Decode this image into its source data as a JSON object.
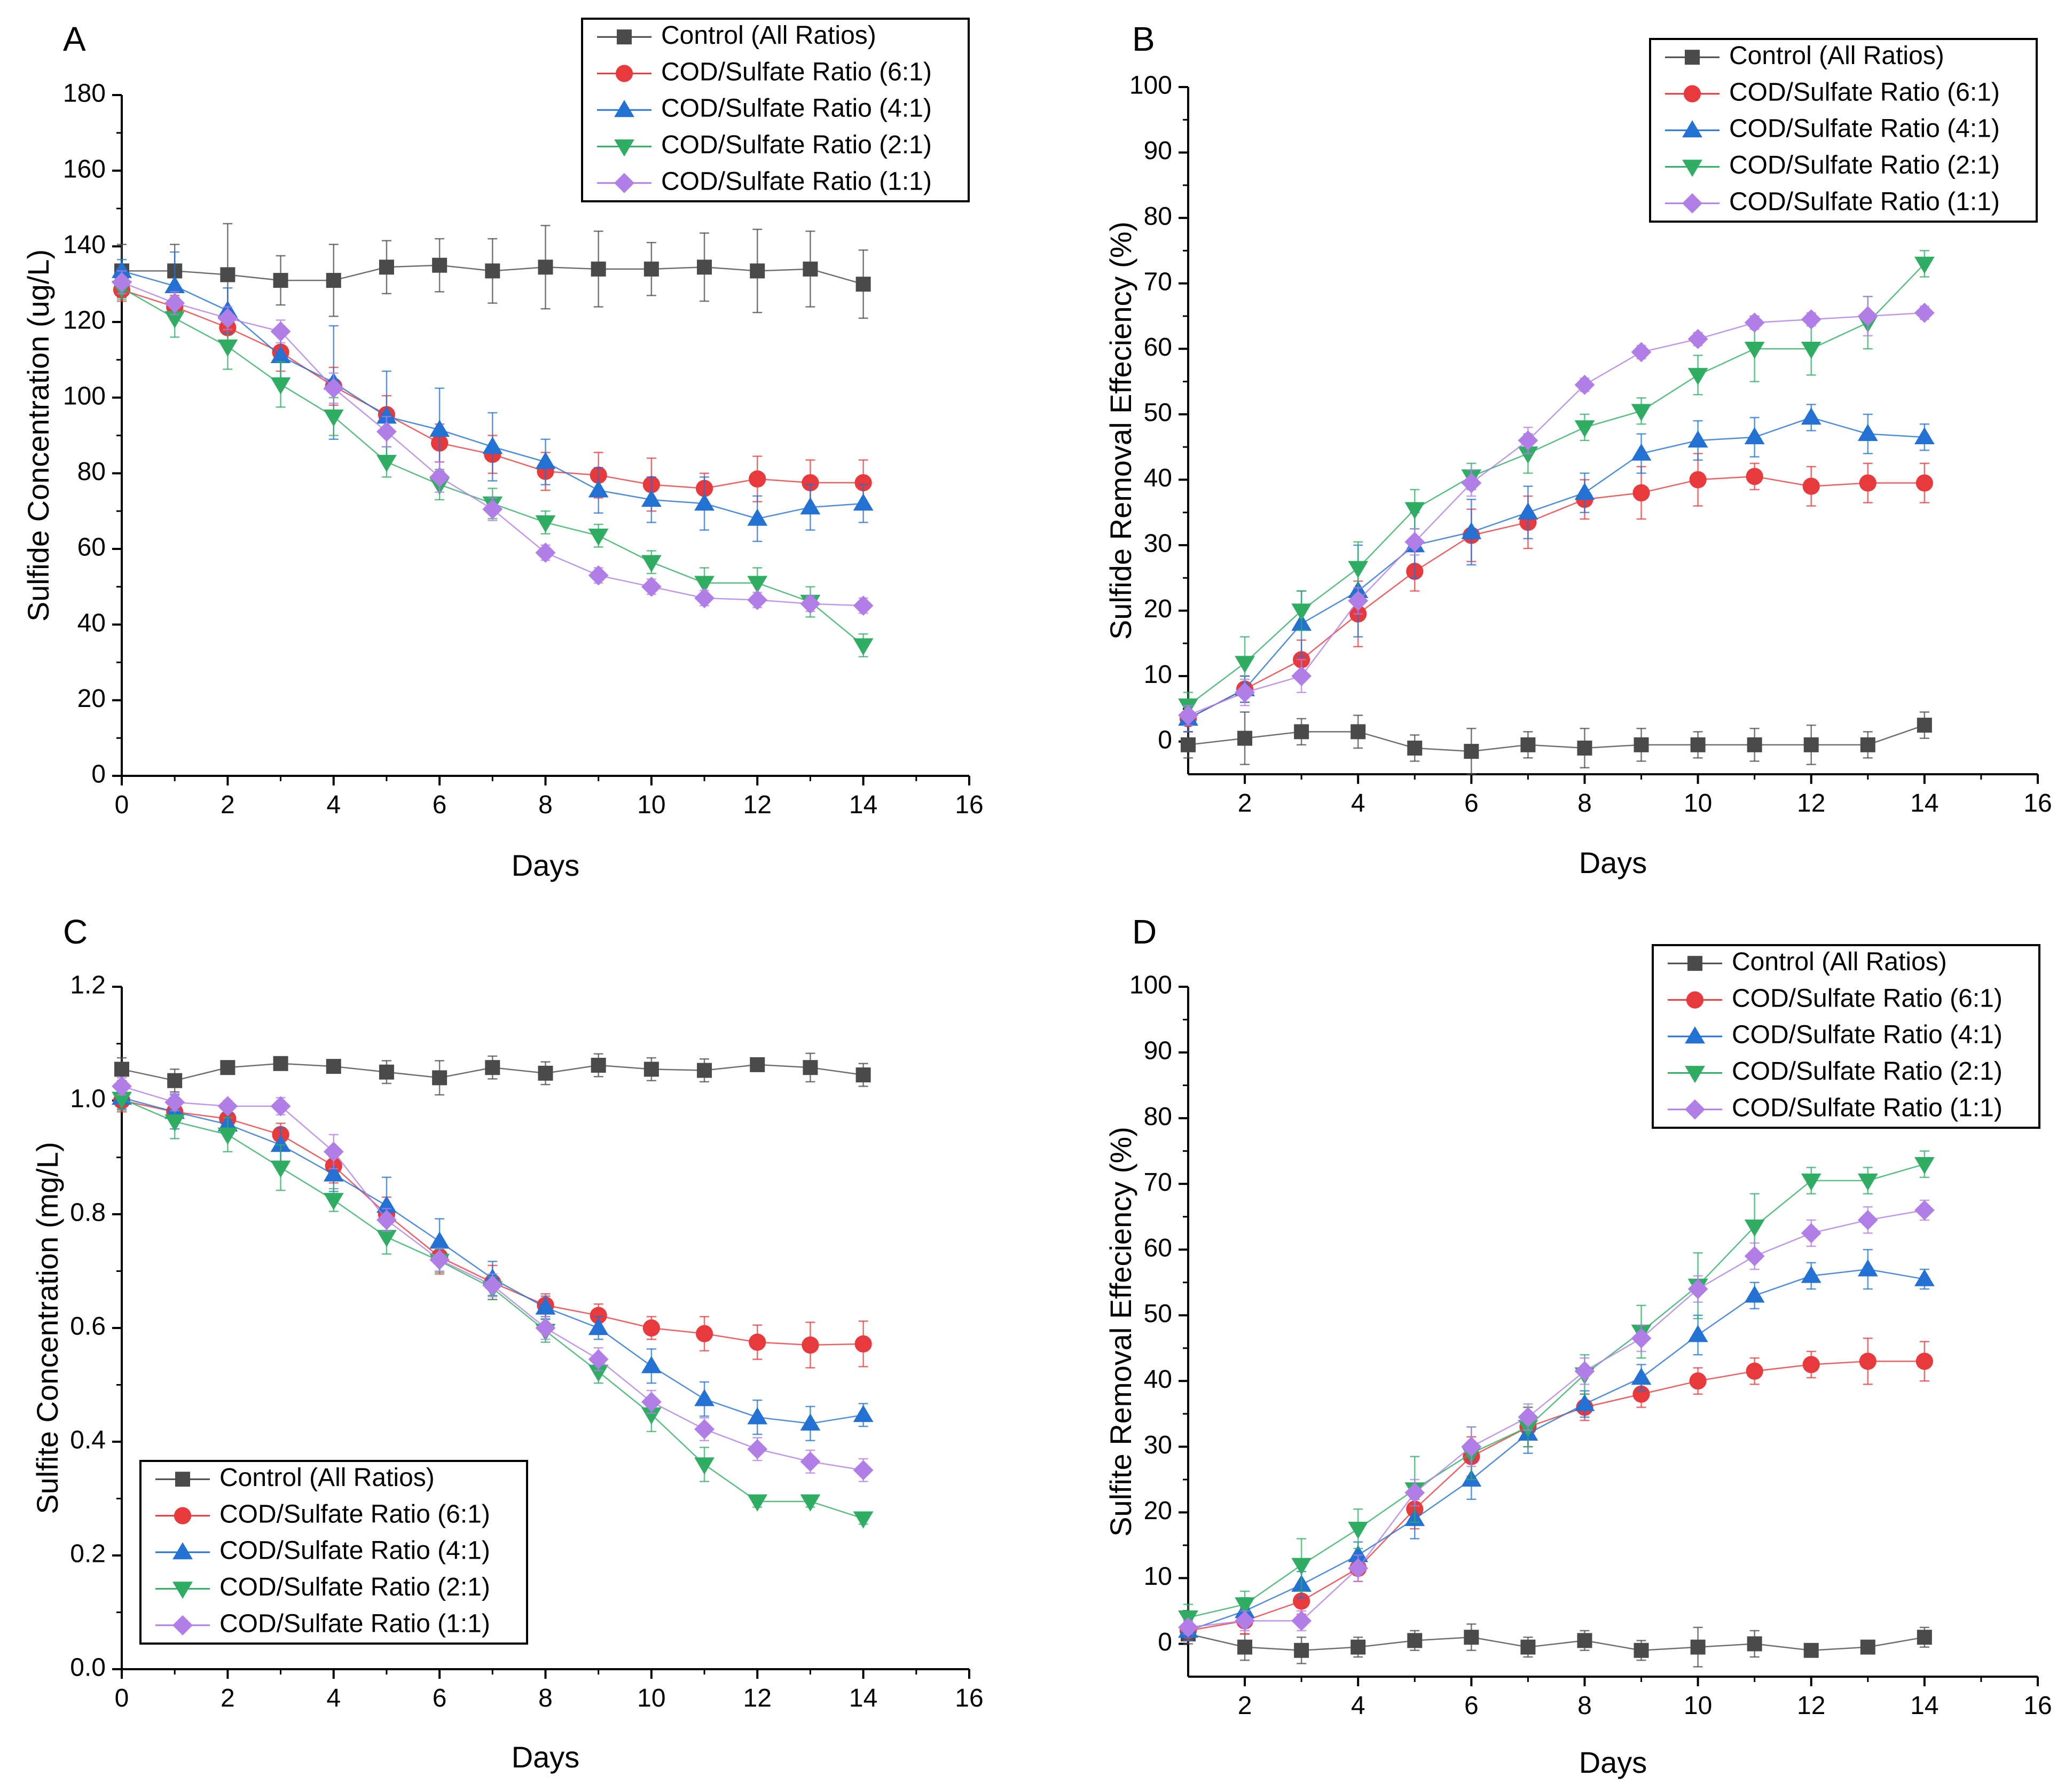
{
  "figure": {
    "colors": {
      "control": "#4a4a4a",
      "ratio_6_1": "#e8393c",
      "ratio_4_1": "#2271d3",
      "ratio_2_1": "#2fae63",
      "ratio_1_1": "#b07ee6",
      "axis": "#000000"
    }
  },
  "chart_data": [
    {
      "panel": "A",
      "type": "line",
      "xlabel": "Days",
      "ylabel": "Sulfide Concentration (ug/L)",
      "xlim": [
        0,
        16
      ],
      "ylim": [
        0,
        180
      ],
      "xticks": [
        0,
        2,
        4,
        6,
        8,
        10,
        12,
        14,
        16
      ],
      "yticks": [
        0,
        20,
        40,
        60,
        80,
        100,
        120,
        140,
        160,
        180
      ],
      "legend_position": "top-right",
      "x": [
        0,
        1,
        2,
        3,
        4,
        5,
        6,
        7,
        8,
        9,
        10,
        11,
        12,
        13,
        14
      ],
      "series": [
        {
          "name": "Control (All Ratios)",
          "marker": "square",
          "color_key": "control",
          "values": [
            133.5,
            133.5,
            132.5,
            131,
            131,
            134.5,
            135,
            133.5,
            134.5,
            134,
            134,
            134.5,
            133.5,
            134,
            130
          ],
          "errors": [
            7,
            7,
            13.5,
            6.5,
            9.5,
            7,
            7,
            8.5,
            11,
            10,
            7,
            9,
            11,
            10,
            9
          ]
        },
        {
          "name": "COD/Sulfate Ratio (6:1)",
          "marker": "circle",
          "color_key": "ratio_6_1",
          "values": [
            128.5,
            124,
            118.5,
            112,
            103,
            95.5,
            88,
            85,
            80.5,
            79.5,
            77,
            76,
            78.5,
            77.5,
            77.5
          ],
          "errors": [
            3,
            3,
            4,
            5,
            5,
            5,
            5,
            5,
            5,
            6,
            7,
            4,
            6,
            6,
            6
          ]
        },
        {
          "name": "COD/Sulfate Ratio (4:1)",
          "marker": "triangle-up",
          "color_key": "ratio_4_1",
          "values": [
            133.5,
            129.5,
            123,
            111,
            104,
            95,
            91.5,
            87,
            83,
            75.5,
            73,
            72,
            68,
            71,
            72
          ],
          "errors": [
            3,
            9,
            6,
            6,
            15,
            12,
            11,
            9,
            6,
            6,
            6,
            7,
            6,
            6,
            5
          ]
        },
        {
          "name": "COD/Sulfate Ratio (2:1)",
          "marker": "triangle-down",
          "color_key": "ratio_2_1",
          "values": [
            129,
            121,
            113.5,
            103.5,
            95,
            83,
            77,
            72,
            67,
            63.5,
            56.5,
            51,
            51,
            46,
            34.5
          ],
          "errors": [
            3,
            5,
            6,
            6,
            5,
            4,
            4,
            4,
            3,
            3,
            3,
            4,
            4,
            4,
            3
          ]
        },
        {
          "name": "COD/Sulfate Ratio (1:1)",
          "marker": "diamond",
          "color_key": "ratio_1_1",
          "values": [
            130.5,
            125,
            121,
            117.5,
            102.5,
            91,
            79,
            70.5,
            59,
            53,
            50,
            47,
            46.5,
            45.5,
            45
          ],
          "errors": [
            3,
            3,
            3,
            3,
            4,
            4,
            4,
            3,
            2,
            2,
            2,
            2,
            2,
            2,
            2
          ]
        }
      ]
    },
    {
      "panel": "B",
      "type": "line",
      "xlabel": "Days",
      "ylabel": "Sulfide Removal Effeciency (%)",
      "xlim": [
        1,
        16
      ],
      "ylim": [
        -5,
        100
      ],
      "xticks": [
        2,
        4,
        6,
        8,
        10,
        12,
        14,
        16
      ],
      "yticks": [
        0,
        10,
        20,
        30,
        40,
        50,
        60,
        70,
        80,
        90,
        100
      ],
      "legend_position": "top-right",
      "x": [
        1,
        2,
        3,
        4,
        5,
        6,
        7,
        8,
        9,
        10,
        11,
        12,
        13,
        14
      ],
      "series": [
        {
          "name": "Control (All Ratios)",
          "marker": "square",
          "color_key": "control",
          "values": [
            -0.5,
            0.5,
            1.5,
            1.5,
            -1,
            -1.5,
            -0.5,
            -1,
            -0.5,
            -0.5,
            -0.5,
            -0.5,
            -0.5,
            2.5
          ],
          "errors": [
            2,
            4,
            2,
            2.5,
            2,
            3.5,
            2,
            3,
            2.5,
            2,
            2.5,
            3,
            2,
            2
          ]
        },
        {
          "name": "COD/Sulfate Ratio (6:1)",
          "marker": "circle",
          "color_key": "ratio_6_1",
          "values": [
            3.5,
            8,
            12.5,
            19.5,
            26,
            31.5,
            33.5,
            37,
            38,
            40,
            40.5,
            39,
            39.5,
            39.5
          ],
          "errors": [
            2,
            2,
            3,
            5,
            3,
            4,
            4,
            3,
            4,
            4,
            2,
            3,
            3,
            3
          ]
        },
        {
          "name": "COD/Sulfate Ratio (4:1)",
          "marker": "triangle-up",
          "color_key": "ratio_4_1",
          "values": [
            3.5,
            8,
            18,
            23,
            30,
            32,
            35,
            38,
            44,
            46,
            46.5,
            49.5,
            47,
            46.5
          ],
          "errors": [
            2,
            2,
            5,
            7,
            5,
            5,
            4,
            3,
            3,
            3,
            3,
            2,
            3,
            2
          ]
        },
        {
          "name": "COD/Sulfate Ratio (2:1)",
          "marker": "triangle-down",
          "color_key": "ratio_2_1",
          "values": [
            5.5,
            12,
            20,
            26.5,
            35.5,
            40.5,
            44,
            48,
            50.5,
            56,
            60,
            60,
            64,
            73
          ],
          "errors": [
            2,
            4,
            3,
            4,
            3,
            2,
            3,
            2,
            2,
            3,
            5,
            4,
            4,
            2
          ]
        },
        {
          "name": "COD/Sulfate Ratio (1:1)",
          "marker": "diamond",
          "color_key": "ratio_1_1",
          "values": [
            4,
            7.5,
            10,
            21.5,
            30.5,
            39.5,
            46,
            54.5,
            59.5,
            61.5,
            64,
            64.5,
            65,
            65.5
          ],
          "errors": [
            1.5,
            2,
            2.5,
            2,
            2,
            2,
            2,
            1,
            1,
            1,
            1,
            1,
            3,
            1
          ]
        }
      ]
    },
    {
      "panel": "C",
      "type": "line",
      "xlabel": "Days",
      "ylabel": "Sulfite Concentration (mg/L)",
      "xlim": [
        0,
        16
      ],
      "ylim": [
        0,
        1.2
      ],
      "xticks": [
        0,
        2,
        4,
        6,
        8,
        10,
        12,
        14,
        16
      ],
      "yticks": [
        0.0,
        0.2,
        0.4,
        0.6,
        0.8,
        1.0,
        1.2
      ],
      "ytick_labels": [
        "0.0",
        "0.2",
        "0.4",
        "0.6",
        "0.8",
        "1.0",
        "1.2"
      ],
      "legend_position": "bottom-left",
      "x": [
        0,
        1,
        2,
        3,
        4,
        5,
        6,
        7,
        8,
        9,
        10,
        11,
        12,
        13,
        14
      ],
      "series": [
        {
          "name": "Control (All Ratios)",
          "marker": "square",
          "color_key": "control",
          "values": [
            1.055,
            1.035,
            1.058,
            1.065,
            1.06,
            1.05,
            1.04,
            1.058,
            1.048,
            1.062,
            1.055,
            1.053,
            1.063,
            1.058,
            1.045
          ],
          "errors": [
            0.02,
            0.02,
            0.01,
            0.01,
            0.01,
            0.02,
            0.03,
            0.02,
            0.02,
            0.02,
            0.02,
            0.02,
            0.01,
            0.025,
            0.02
          ]
        },
        {
          "name": "COD/Sulfate Ratio (6:1)",
          "marker": "circle",
          "color_key": "ratio_6_1",
          "values": [
            1.0,
            0.98,
            0.968,
            0.94,
            0.885,
            0.8,
            0.725,
            0.68,
            0.64,
            0.622,
            0.6,
            0.59,
            0.575,
            0.57,
            0.572
          ],
          "errors": [
            0.02,
            0.02,
            0.02,
            0.02,
            0.03,
            0.03,
            0.03,
            0.03,
            0.02,
            0.02,
            0.02,
            0.03,
            0.03,
            0.04,
            0.04
          ]
        },
        {
          "name": "COD/Sulfate Ratio (4:1)",
          "marker": "triangle-up",
          "color_key": "ratio_4_1",
          "values": [
            1.005,
            0.98,
            0.958,
            0.922,
            0.87,
            0.815,
            0.752,
            0.687,
            0.636,
            0.6,
            0.533,
            0.475,
            0.443,
            0.432,
            0.447
          ],
          "errors": [
            0.02,
            0.03,
            0.02,
            0.03,
            0.03,
            0.05,
            0.04,
            0.03,
            0.02,
            0.02,
            0.03,
            0.03,
            0.03,
            0.03,
            0.02
          ]
        },
        {
          "name": "COD/Sulfate Ratio (2:1)",
          "marker": "triangle-down",
          "color_key": "ratio_2_1",
          "values": [
            1.003,
            0.963,
            0.94,
            0.882,
            0.825,
            0.76,
            0.718,
            0.67,
            0.595,
            0.523,
            0.448,
            0.36,
            0.295,
            0.295,
            0.265
          ],
          "errors": [
            0.02,
            0.03,
            0.03,
            0.04,
            0.02,
            0.03,
            0.02,
            0.02,
            0.02,
            0.02,
            0.03,
            0.03,
            0.01,
            0.01,
            0.01
          ]
        },
        {
          "name": "COD/Sulfate Ratio (1:1)",
          "marker": "diamond",
          "color_key": "ratio_1_1",
          "values": [
            1.025,
            0.997,
            0.99,
            0.99,
            0.91,
            0.79,
            0.72,
            0.675,
            0.6,
            0.545,
            0.47,
            0.422,
            0.387,
            0.365,
            0.35
          ],
          "errors": [
            0.015,
            0.015,
            0.01,
            0.015,
            0.03,
            0.02,
            0.02,
            0.02,
            0.02,
            0.02,
            0.02,
            0.02,
            0.02,
            0.02,
            0.02
          ]
        }
      ]
    },
    {
      "panel": "D",
      "type": "line",
      "xlabel": "Days",
      "ylabel": "Sulfite Removal Effeciency (%)",
      "xlim": [
        1,
        16
      ],
      "ylim": [
        -5,
        100
      ],
      "xticks": [
        2,
        4,
        6,
        8,
        10,
        12,
        14,
        16
      ],
      "yticks": [
        0,
        10,
        20,
        30,
        40,
        50,
        60,
        70,
        80,
        90,
        100
      ],
      "legend_position": "top-right",
      "x": [
        1,
        2,
        3,
        4,
        5,
        6,
        7,
        8,
        9,
        10,
        11,
        12,
        13,
        14
      ],
      "series": [
        {
          "name": "Control (All Ratios)",
          "marker": "square",
          "color_key": "control",
          "values": [
            1.5,
            -0.5,
            -1,
            -0.5,
            0.5,
            1,
            -0.5,
            0.5,
            -1,
            -0.5,
            0,
            -1,
            -0.5,
            1
          ],
          "errors": [
            1.5,
            2,
            2,
            1.5,
            1.5,
            2,
            1.5,
            1.5,
            1.5,
            3,
            2,
            1,
            1,
            1.5
          ]
        },
        {
          "name": "COD/Sulfate Ratio (6:1)",
          "marker": "circle",
          "color_key": "ratio_6_1",
          "values": [
            2,
            3.5,
            6.5,
            11.5,
            20.5,
            28.5,
            33,
            36,
            38,
            40,
            41.5,
            42.5,
            43,
            43
          ],
          "errors": [
            1.5,
            2,
            2,
            2,
            3,
            3,
            3,
            2,
            2,
            2,
            2,
            2,
            3.5,
            3
          ]
        },
        {
          "name": "COD/Sulfate Ratio (4:1)",
          "marker": "triangle-up",
          "color_key": "ratio_4_1",
          "values": [
            2,
            5,
            9,
            13.5,
            19,
            25,
            32,
            36.5,
            40.5,
            47,
            53,
            56,
            57,
            55.5
          ],
          "errors": [
            1.5,
            2,
            2,
            2,
            3,
            3,
            3,
            2,
            2,
            3,
            2,
            2,
            3,
            1.5
          ]
        },
        {
          "name": "COD/Sulfate Ratio (2:1)",
          "marker": "triangle-down",
          "color_key": "ratio_2_1",
          "values": [
            4,
            6,
            12,
            17.5,
            23.5,
            29,
            33,
            41,
            47.5,
            54.5,
            63.5,
            70.5,
            70.5,
            73
          ],
          "errors": [
            2,
            2,
            4,
            3,
            5,
            4,
            3,
            3,
            4,
            5,
            5,
            2,
            2,
            2
          ]
        },
        {
          "name": "COD/Sulfate Ratio (1:1)",
          "marker": "diamond",
          "color_key": "ratio_1_1",
          "values": [
            2.5,
            3.5,
            3.5,
            11.5,
            23,
            30,
            34.5,
            41.5,
            46.5,
            54,
            59,
            62.5,
            64.5,
            66
          ],
          "errors": [
            1,
            1.5,
            1.5,
            2,
            2,
            3,
            2,
            2,
            2,
            2,
            2,
            2,
            2,
            1.5
          ]
        }
      ]
    }
  ]
}
